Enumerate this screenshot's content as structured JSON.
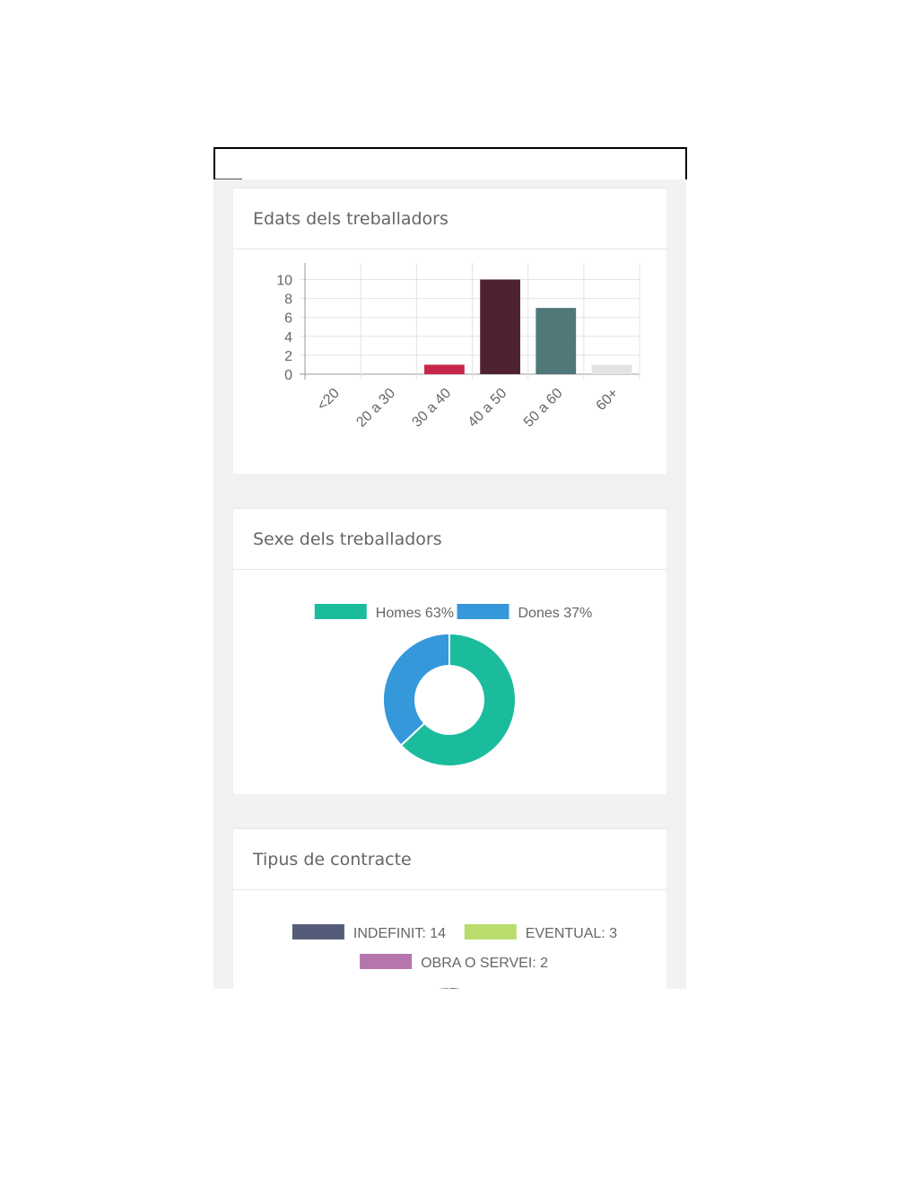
{
  "cards": [
    {
      "title": "Edats dels treballadors"
    },
    {
      "title": "Sexe dels treballadors"
    },
    {
      "title": "Tipus de contracte"
    }
  ],
  "chart_data": [
    {
      "type": "bar",
      "title": "Edats dels treballadors",
      "categories": [
        "<20",
        "20 a 30",
        "30 a 40",
        "40 a 50",
        "50 a 60",
        "60+"
      ],
      "values": [
        0,
        0,
        1,
        10,
        7,
        1
      ],
      "colors": [
        "#cccccc",
        "#cccccc",
        "#c7264a",
        "#4e2233",
        "#507878",
        "#e3e3e3"
      ],
      "yticks": [
        0,
        2,
        4,
        6,
        8,
        10
      ],
      "ylim": [
        0,
        11
      ],
      "grid": true
    },
    {
      "type": "pie",
      "title": "Sexe dels treballadors",
      "variant": "doughnut",
      "slices": [
        {
          "label": "Homes 63%",
          "value": 63,
          "color": "#1abc9c"
        },
        {
          "label": "Dones 37%",
          "value": 37,
          "color": "#3498db"
        }
      ],
      "legend": "top"
    },
    {
      "type": "pie",
      "title": "Tipus de contracte",
      "slices": [
        {
          "label": "INDEFINIT: 14",
          "value": 14,
          "color": "#545c7a"
        },
        {
          "label": "EVENTUAL: 3",
          "value": 3,
          "color": "#badc6c"
        },
        {
          "label": "OBRA O SERVEI: 2",
          "value": 2,
          "color": "#b576ad"
        }
      ],
      "legend": "top"
    }
  ]
}
